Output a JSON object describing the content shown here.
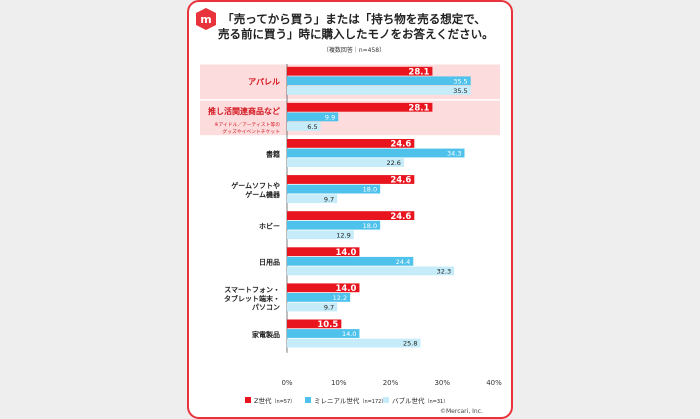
{
  "title_lines": [
    "「売ってから買う」または「持ち物を売る想定で、",
    "売る前に買う」時に購入したモノをお答えください。"
  ],
  "note": "（複数回答｜n=458）",
  "credit": "©Mercari, Inc.",
  "colors": {
    "z": "#e8141e",
    "millennial": "#4fc2ec",
    "bubble": "#c5ecf8",
    "highlight": "#fcdcdc",
    "brand": "#e8323c"
  },
  "chart_data": {
    "type": "bar",
    "orientation": "horizontal",
    "categories": [
      [
        "アパレル"
      ],
      [
        "推し活関連商品など"
      ],
      [
        "書籍"
      ],
      [
        "ゲームソフトや",
        "ゲーム機器"
      ],
      [
        "ホビー"
      ],
      [
        "日用品"
      ],
      [
        "スマートフォン・",
        "タブレット端末・",
        "パソコン"
      ],
      [
        "家電製品"
      ]
    ],
    "category_notes": [
      [],
      [
        "※アイドル／アーティスト等の",
        "グッズやイベントチケット"
      ],
      [],
      [],
      [],
      [],
      [],
      []
    ],
    "highlighted": [
      true,
      true,
      false,
      false,
      false,
      false,
      false,
      false
    ],
    "series": [
      {
        "name": "Z世代",
        "n_label": "（n=57）",
        "values": [
          28.1,
          28.1,
          24.6,
          24.6,
          24.6,
          14.0,
          14.0,
          10.5
        ]
      },
      {
        "name": "ミレニアル世代",
        "n_label": "（n=172）",
        "values": [
          35.5,
          9.9,
          34.3,
          18.0,
          18.0,
          24.4,
          12.2,
          14.0
        ]
      },
      {
        "name": "バブル世代",
        "n_label": "（n=31）",
        "values": [
          35.5,
          6.5,
          22.6,
          9.7,
          12.9,
          32.3,
          9.7,
          25.8
        ]
      }
    ],
    "xlim": [
      0,
      40
    ],
    "xticks": [
      "0%",
      "10%",
      "20%",
      "30%",
      "40%"
    ],
    "legend_position": "bottom"
  }
}
